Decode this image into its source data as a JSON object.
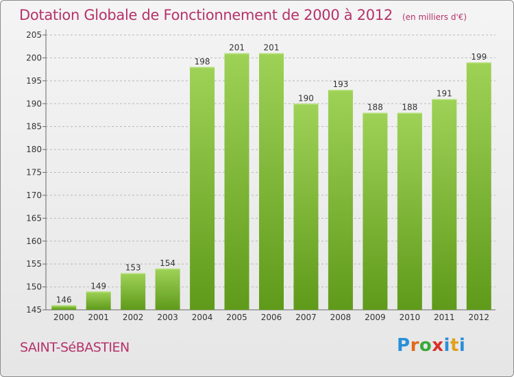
{
  "title": "Dotation Globale de Fonctionnement de 2000 à 2012",
  "unit": "(en milliers d'€)",
  "commune": "SAINT-SéBASTIEN",
  "logo": {
    "letters": [
      "P",
      "r",
      "o",
      "x",
      "i",
      "t",
      "i"
    ],
    "colors": [
      "#2a8fd8",
      "#e06a1a",
      "#3aa83a",
      "#d8302a",
      "#2a8fd8",
      "#e0a020",
      "#2a8fd8"
    ]
  },
  "colors": {
    "bar_top": "#9ed257",
    "bar_bottom": "#5f9a1a",
    "title": "#b5326a"
  },
  "chart_data": {
    "type": "bar",
    "title": "Dotation Globale de Fonctionnement de 2000 à 2012",
    "xlabel": "",
    "ylabel": "",
    "ylim": [
      145,
      205
    ],
    "yticks": [
      145,
      150,
      155,
      160,
      165,
      170,
      175,
      180,
      185,
      190,
      195,
      200,
      205
    ],
    "grid": true,
    "categories": [
      "2000",
      "2001",
      "2002",
      "2003",
      "2004",
      "2005",
      "2006",
      "2007",
      "2008",
      "2009",
      "2010",
      "2011",
      "2012"
    ],
    "values": [
      146,
      149,
      153,
      154,
      198,
      201,
      201,
      190,
      193,
      188,
      188,
      191,
      199
    ]
  }
}
